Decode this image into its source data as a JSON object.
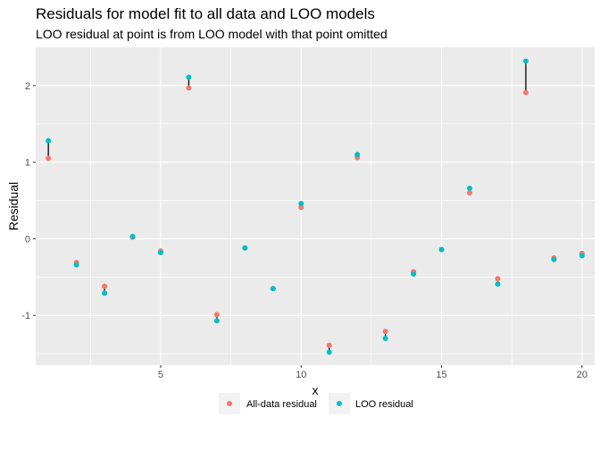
{
  "chart_data": {
    "type": "scatter",
    "title": "Residuals for model fit to all data and LOO models",
    "subtitle": "LOO residual at point is from LOO model with that point omitted",
    "xlabel": "x",
    "ylabel": "Residual",
    "xlim": [
      0.55,
      20.45
    ],
    "ylim": [
      -1.65,
      2.5
    ],
    "x_ticks": [
      5,
      10,
      15,
      20
    ],
    "x_tick_labels": [
      "5",
      "10",
      "15",
      "20"
    ],
    "y_ticks": [
      -1,
      0,
      1,
      2
    ],
    "y_tick_labels": [
      "-1",
      "0",
      "1",
      "2"
    ],
    "grid": true,
    "legend_position": "bottom",
    "colors": {
      "all": "#F8766D",
      "loo": "#00BFC4",
      "panel": "#EBEBEB",
      "segment": "#000000"
    },
    "x": [
      1,
      2,
      3,
      4,
      5,
      6,
      7,
      8,
      9,
      10,
      11,
      12,
      13,
      14,
      15,
      16,
      17,
      18,
      19,
      20
    ],
    "series": [
      {
        "name": "All-data residual",
        "values": [
          1.05,
          -0.31,
          -0.62,
          0.02,
          -0.16,
          1.97,
          -0.99,
          -0.12,
          -0.65,
          0.41,
          -1.39,
          1.06,
          -1.21,
          -0.43,
          -0.14,
          0.6,
          -0.52,
          1.91,
          -0.25,
          -0.19
        ]
      },
      {
        "name": "LOO residual",
        "values": [
          1.28,
          -0.34,
          -0.71,
          0.03,
          -0.18,
          2.11,
          -1.07,
          -0.12,
          -0.65,
          0.46,
          -1.48,
          1.1,
          -1.3,
          -0.46,
          -0.14,
          0.66,
          -0.59,
          2.32,
          -0.27,
          -0.22
        ]
      }
    ]
  }
}
